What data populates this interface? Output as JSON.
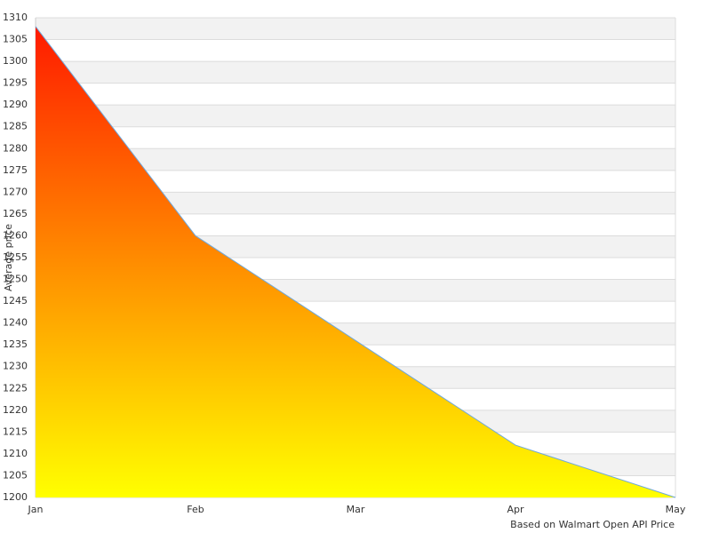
{
  "chart_data": {
    "type": "area",
    "categories": [
      "Jan",
      "Feb",
      "Mar",
      "Apr",
      "May"
    ],
    "series": [
      {
        "name": "Average price",
        "color": "#6fa8dc",
        "values": [
          1308,
          1260,
          1236,
          1212,
          1200
        ]
      }
    ],
    "gradient": [
      "#ff1a00",
      "#ffff00"
    ],
    "ylabel": "Average price",
    "note": "Based on Walmart Open API Price",
    "ylim": [
      1200,
      1310
    ],
    "yticks": [
      1200,
      1205,
      1210,
      1215,
      1220,
      1225,
      1230,
      1235,
      1240,
      1245,
      1250,
      1255,
      1260,
      1265,
      1270,
      1275,
      1280,
      1285,
      1290,
      1295,
      1300,
      1305,
      1310
    ],
    "grid": true
  }
}
